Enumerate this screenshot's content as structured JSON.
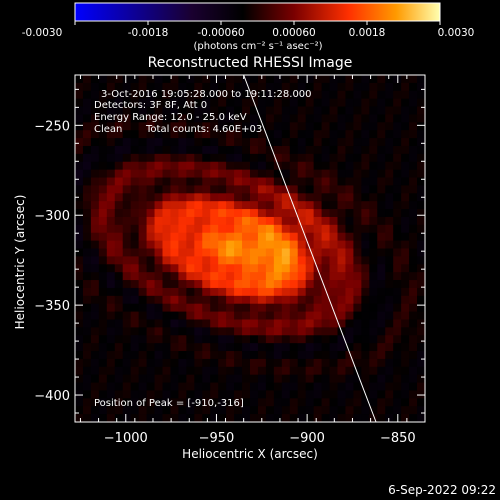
{
  "colorbar": {
    "ticks": [
      "-0.0030",
      "-0.0018",
      "-0.00060",
      "0.00060",
      "0.0018",
      "0.0030"
    ],
    "unit_label": "(photons cm⁻² s⁻¹ asec⁻²)",
    "range": [
      -0.003,
      0.003
    ]
  },
  "chart_data": {
    "type": "heatmap",
    "title": "Reconstructed RHESSI Image",
    "xlabel": "Heliocentric X (arcsec)",
    "ylabel": "Heliocentric Y (arcsec)",
    "xlim": [
      -1028,
      -835
    ],
    "ylim": [
      -415,
      -222
    ],
    "x_ticks": [
      -1000,
      -950,
      -900,
      -850
    ],
    "y_ticks": [
      -250,
      -300,
      -350,
      -400
    ],
    "x_tick_labels": [
      "−1000",
      "−950",
      "−900",
      "−850"
    ],
    "y_tick_labels": [
      "−250",
      "−300",
      "−350",
      "−400"
    ],
    "peak": {
      "x": -910,
      "y": -316
    },
    "source": {
      "center_x": -945,
      "center_y": -318,
      "extent_x": 55,
      "extent_y": 30,
      "angle_deg": 22
    },
    "limb": [
      [
        -935,
        -222
      ],
      [
        -862,
        -415
      ]
    ],
    "annotations": {
      "time": "3-Oct-2016 19:05:28.000 to 19:11:28.000",
      "detectors": "Detectors: 3F 8F, Att 0",
      "energy": "Energy Range: 12.0 - 25.0 keV",
      "clean_label": "Clean",
      "counts": "Total counts: 4.60E+03",
      "peak_label": "Position of Peak = [-910,-316]"
    }
  },
  "footer": {
    "date": "6-Sep-2022 09:22"
  }
}
